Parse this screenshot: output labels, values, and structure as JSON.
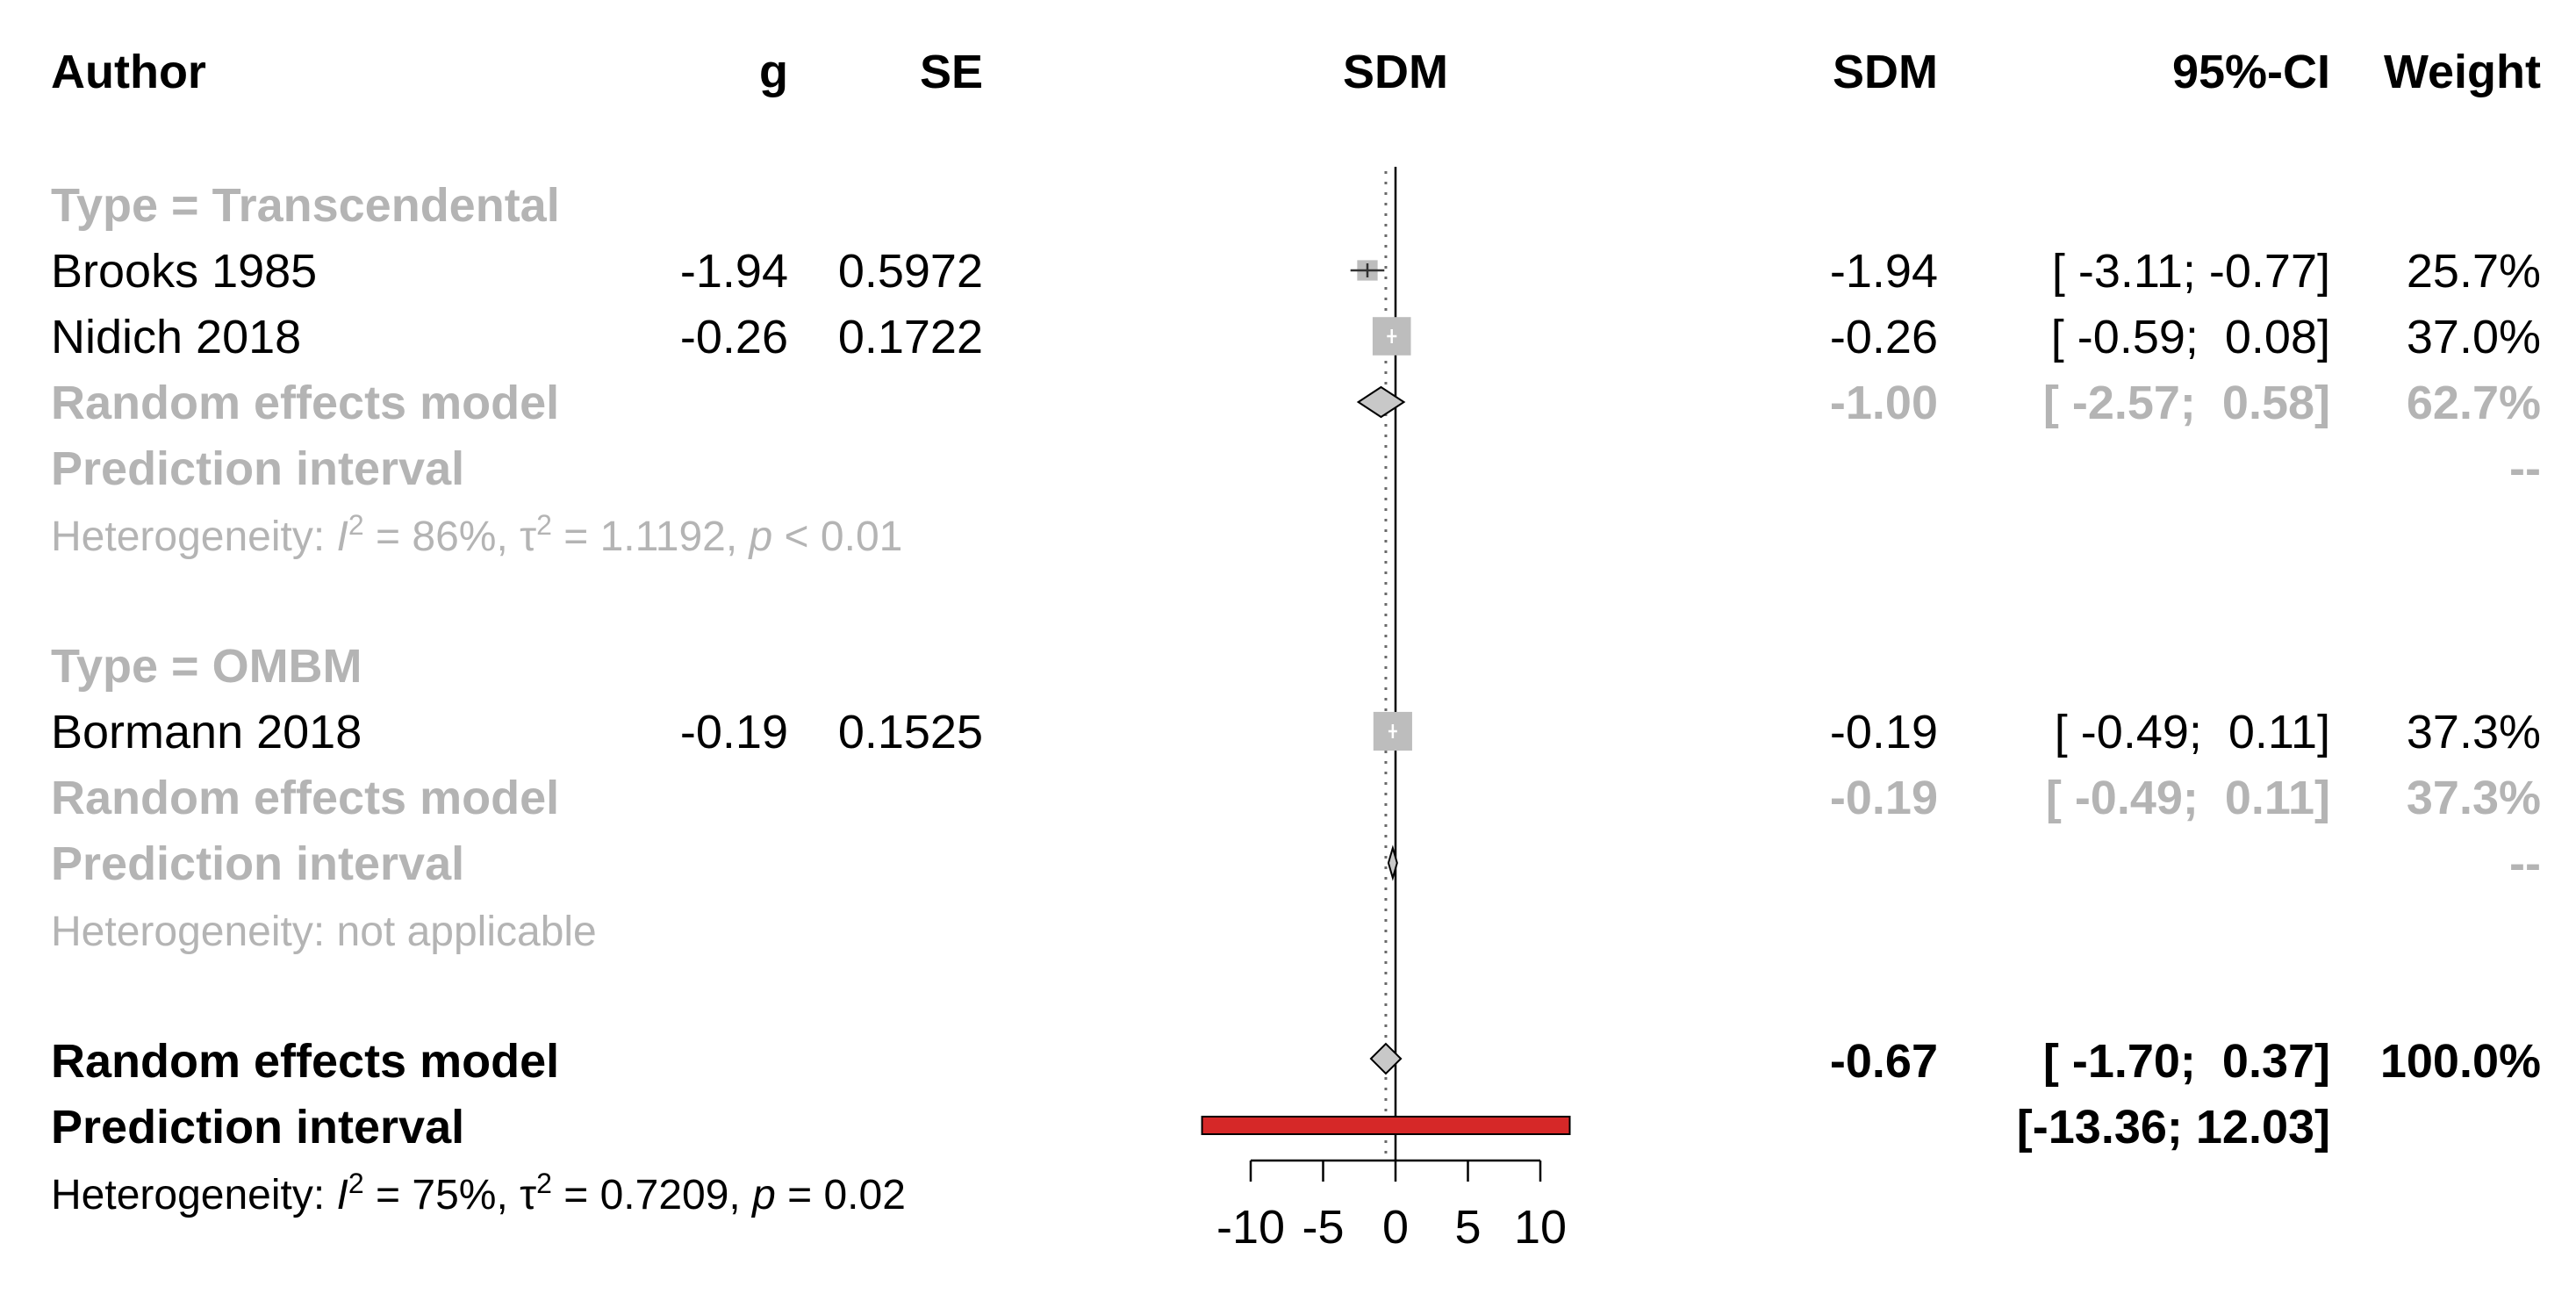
{
  "chart_data": {
    "type": "forest",
    "columns": {
      "author": "Author",
      "g": "g",
      "se": "SE",
      "plot": "SDM",
      "sdm": "SDM",
      "ci": "95%-CI",
      "weight": "Weight"
    },
    "axis": {
      "range": [
        -10,
        10
      ],
      "ticks": [
        "-10",
        "-5",
        "0",
        "5",
        "10"
      ],
      "reference_line": 0
    },
    "subgroups": [
      {
        "title": "Type = Transcendental",
        "studies": [
          {
            "author": "Brooks 1985",
            "g": "-1.94",
            "se": "0.5972",
            "sdm": "-1.94",
            "ci": "[ -3.11; -0.77]",
            "weight": "25.7%",
            "est": -1.94,
            "lo": -3.11,
            "hi": -0.77,
            "w": 25.7
          },
          {
            "author": "Nidich 2018",
            "g": "-0.26",
            "se": "0.1722",
            "sdm": "-0.26",
            "ci": "[ -0.59;  0.08]",
            "weight": "37.0%",
            "est": -0.26,
            "lo": -0.59,
            "hi": 0.08,
            "w": 37.0
          }
        ],
        "random": {
          "label": "Random effects model",
          "sdm": "-1.00",
          "ci": "[ -2.57;  0.58]",
          "weight": "62.7%",
          "est": -1.0,
          "lo": -2.57,
          "hi": 0.58
        },
        "prediction": {
          "label": "Prediction interval",
          "value": "--"
        },
        "heterogeneity": {
          "prefix": "Heterogeneity: ",
          "i2_label": "I",
          "i2_value": " = 86%, ",
          "tau_label": "τ",
          "tau_value": " = 1.1192, ",
          "p_label": "p",
          "p_value": " < 0.01"
        }
      },
      {
        "title": "Type = OMBM",
        "studies": [
          {
            "author": "Bormann 2018",
            "g": "-0.19",
            "se": "0.1525",
            "sdm": "-0.19",
            "ci": "[ -0.49;  0.11]",
            "weight": "37.3%",
            "est": -0.19,
            "lo": -0.49,
            "hi": 0.11,
            "w": 37.3
          }
        ],
        "random": {
          "label": "Random effects model",
          "sdm": "-0.19",
          "ci": "[ -0.49;  0.11]",
          "weight": "37.3%",
          "est": -0.19,
          "lo": -0.49,
          "hi": 0.11
        },
        "prediction": {
          "label": "Prediction interval",
          "value": "--"
        },
        "heterogeneity": {
          "text": "Heterogeneity: not applicable"
        }
      }
    ],
    "overall": {
      "random": {
        "label": "Random effects model",
        "sdm": "-0.67",
        "ci": "[ -1.70;  0.37]",
        "weight": "100.0%",
        "est": -0.67,
        "lo": -1.7,
        "hi": 0.37
      },
      "prediction": {
        "label": "Prediction interval",
        "ci": "[-13.36; 12.03]",
        "lo": -13.36,
        "hi": 12.03
      },
      "heterogeneity": {
        "prefix": "Heterogeneity: ",
        "i2_label": "I",
        "i2_value": " = 75%, ",
        "tau_label": "τ",
        "tau_value": " = 0.7209, ",
        "p_label": "p",
        "p_value": " = 0.02"
      }
    },
    "colors": {
      "text": "#000000",
      "subgroup": "#b4b4b4",
      "study_square": "#bdbdbd",
      "diamond": "#c8c8c8",
      "prediction_bar": "#d62828"
    }
  }
}
